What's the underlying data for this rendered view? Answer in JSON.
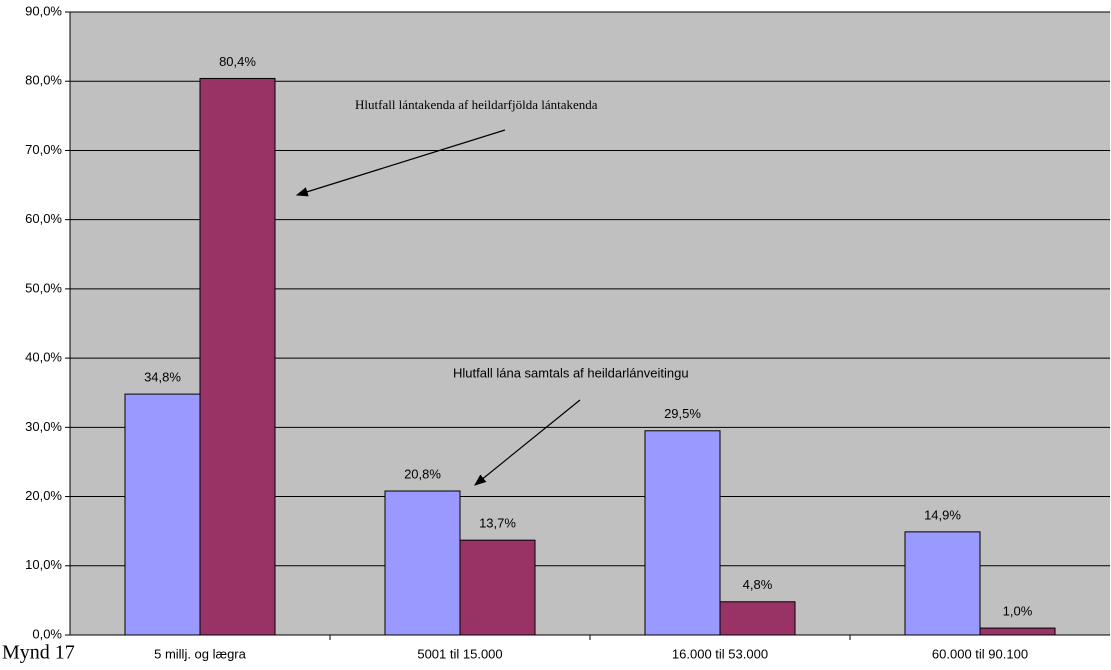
{
  "chart_data": {
    "type": "bar",
    "caption": "Mynd 17",
    "categories": [
      "5 millj. og lægra",
      "5001 til 15.000",
      "16.000 til 53.000",
      "60.000 til 90.100"
    ],
    "series": [
      {
        "color": "#9999ff",
        "values": [
          34.8,
          20.8,
          29.5,
          14.9
        ],
        "value_labels": [
          "34,8%",
          "20,8%",
          "29,5%",
          "14,9%"
        ]
      },
      {
        "color": "#993366",
        "values": [
          80.4,
          13.7,
          4.8,
          1.0
        ],
        "value_labels": [
          "80,4%",
          "13,7%",
          "4,8%",
          "1,0%"
        ]
      }
    ],
    "annotations": [
      "Hlutfall lántakenda af heildarfjölda lántakenda",
      "Hlutfall lána samtals af heildarlánveitingu"
    ],
    "ylim": [
      0,
      90
    ],
    "yticks": [
      {
        "value": 0,
        "label": "0,0%"
      },
      {
        "value": 10,
        "label": "10,0%"
      },
      {
        "value": 20,
        "label": "20,0%"
      },
      {
        "value": 30,
        "label": "30,0%"
      },
      {
        "value": 40,
        "label": "40,0%"
      },
      {
        "value": 50,
        "label": "50,0%"
      },
      {
        "value": 60,
        "label": "60,0%"
      },
      {
        "value": 70,
        "label": "70,0%"
      },
      {
        "value": 80,
        "label": "80,0%"
      },
      {
        "value": 90,
        "label": "90,0%"
      }
    ],
    "grid": true,
    "plot_background": "#c0c0c0"
  }
}
